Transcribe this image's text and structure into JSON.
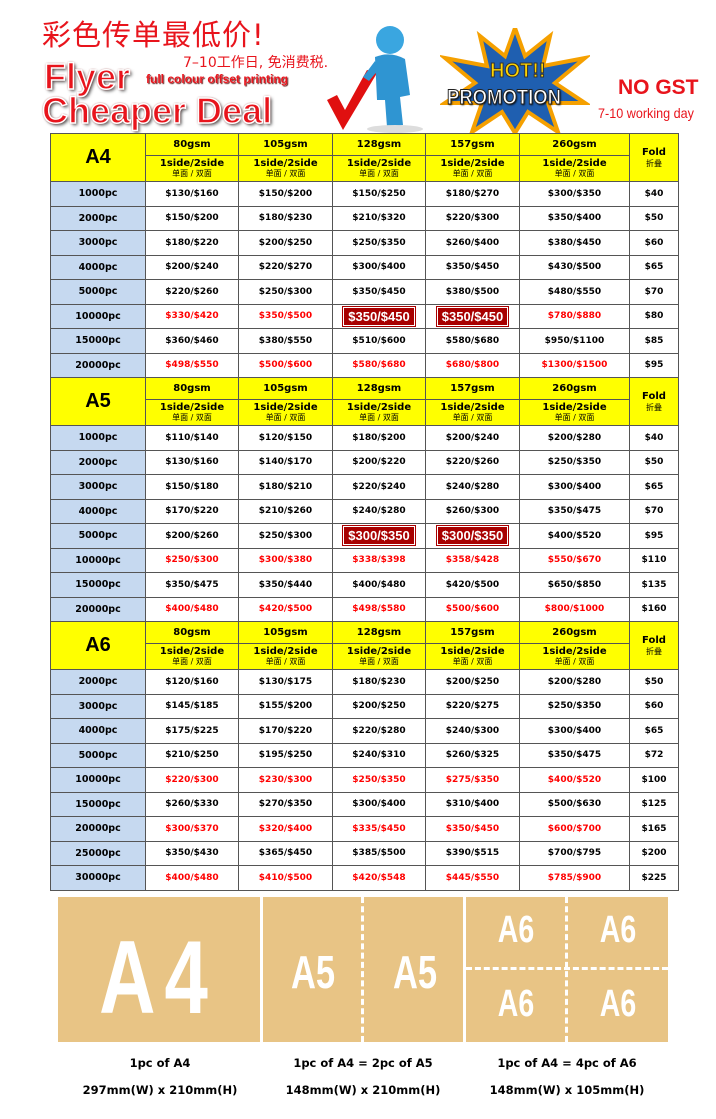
{
  "header": {
    "cn_title": "彩色传单最低价!",
    "cn_subtitle": "7–10工作日, 免消费税.",
    "flyer": "Flyer",
    "full_colour": "full colour offset printing",
    "cheaper_deal": "Cheaper Deal",
    "hot": "HOT!!",
    "promotion": "PROMOTION",
    "no_gst": "NO GST",
    "working_days": "7-10 working day"
  },
  "colors": {
    "accent_red": "#e8141c",
    "header_yellow": "#ffff00",
    "qty_blue": "#c6d9f0",
    "hot_box": "#a80000",
    "paper_tan": "#e8c485"
  },
  "columns": {
    "weights": [
      "80gsm",
      "105gsm",
      "128gsm",
      "157gsm",
      "260gsm"
    ],
    "sides": "1side/2side",
    "sides_cn": "单面 / 双面",
    "fold": "Fold",
    "fold_cn": "折叠"
  },
  "tables": [
    {
      "size": "A4",
      "rows": [
        {
          "qty": "1000pc",
          "prices": [
            "$130/$160",
            "$150/$200",
            "$150/$250",
            "$180/$270",
            "$300/$350"
          ],
          "fold": "$40",
          "style": "normal"
        },
        {
          "qty": "2000pc",
          "prices": [
            "$150/$200",
            "$180/$230",
            "$210/$320",
            "$220/$300",
            "$350/$400"
          ],
          "fold": "$50",
          "style": "normal"
        },
        {
          "qty": "3000pc",
          "prices": [
            "$180/$220",
            "$200/$250",
            "$250/$350",
            "$260/$400",
            "$380/$450"
          ],
          "fold": "$60",
          "style": "normal"
        },
        {
          "qty": "4000pc",
          "prices": [
            "$200/$240",
            "$220/$270",
            "$300/$400",
            "$350/$450",
            "$430/$500"
          ],
          "fold": "$65",
          "style": "normal"
        },
        {
          "qty": "5000pc",
          "prices": [
            "$220/$260",
            "$250/$300",
            "$350/$450",
            "$380/$500",
            "$480/$550"
          ],
          "fold": "$70",
          "style": "normal"
        },
        {
          "qty": "10000pc",
          "prices": [
            "$330/$420",
            "$350/$500",
            "$350/$450",
            "$350/$450",
            "$780/$880"
          ],
          "fold": "$80",
          "style": "red",
          "hot_cols": [
            2,
            3
          ]
        },
        {
          "qty": "15000pc",
          "prices": [
            "$360/$460",
            "$380/$550",
            "$510/$600",
            "$580/$680",
            "$950/$1100"
          ],
          "fold": "$85",
          "style": "normal"
        },
        {
          "qty": "20000pc",
          "prices": [
            "$498/$550",
            "$500/$600",
            "$580/$680",
            "$680/$800",
            "$1300/$1500"
          ],
          "fold": "$95",
          "style": "red"
        }
      ]
    },
    {
      "size": "A5",
      "rows": [
        {
          "qty": "1000pc",
          "prices": [
            "$110/$140",
            "$120/$150",
            "$180/$200",
            "$200/$240",
            "$200/$280"
          ],
          "fold": "$40",
          "style": "normal"
        },
        {
          "qty": "2000pc",
          "prices": [
            "$130/$160",
            "$140/$170",
            "$200/$220",
            "$220/$260",
            "$250/$350"
          ],
          "fold": "$50",
          "style": "normal"
        },
        {
          "qty": "3000pc",
          "prices": [
            "$150/$180",
            "$180/$210",
            "$220/$240",
            "$240/$280",
            "$300/$400"
          ],
          "fold": "$65",
          "style": "normal"
        },
        {
          "qty": "4000pc",
          "prices": [
            "$170/$220",
            "$210/$260",
            "$240/$280",
            "$260/$300",
            "$350/$475"
          ],
          "fold": "$70",
          "style": "normal"
        },
        {
          "qty": "5000pc",
          "prices": [
            "$200/$260",
            "$250/$300",
            "$300/$350",
            "$300/$350",
            "$400/$520"
          ],
          "fold": "$95",
          "style": "normal",
          "hot_cols": [
            2,
            3
          ]
        },
        {
          "qty": "10000pc",
          "prices": [
            "$250/$300",
            "$300/$380",
            "$338/$398",
            "$358/$428",
            "$550/$670"
          ],
          "fold": "$110",
          "style": "red"
        },
        {
          "qty": "15000pc",
          "prices": [
            "$350/$475",
            "$350/$440",
            "$400/$480",
            "$420/$500",
            "$650/$850"
          ],
          "fold": "$135",
          "style": "normal"
        },
        {
          "qty": "20000pc",
          "prices": [
            "$400/$480",
            "$420/$500",
            "$498/$580",
            "$500/$600",
            "$800/$1000"
          ],
          "fold": "$160",
          "style": "red"
        }
      ]
    },
    {
      "size": "A6",
      "rows": [
        {
          "qty": "2000pc",
          "prices": [
            "$120/$160",
            "$130/$175",
            "$180/$230",
            "$200/$250",
            "$200/$280"
          ],
          "fold": "$50",
          "style": "normal"
        },
        {
          "qty": "3000pc",
          "prices": [
            "$145/$185",
            "$155/$200",
            "$200/$250",
            "$220/$275",
            "$250/$350"
          ],
          "fold": "$60",
          "style": "normal"
        },
        {
          "qty": "4000pc",
          "prices": [
            "$175/$225",
            "$170/$220",
            "$220/$280",
            "$240/$300",
            "$300/$400"
          ],
          "fold": "$65",
          "style": "normal"
        },
        {
          "qty": "5000pc",
          "prices": [
            "$210/$250",
            "$195/$250",
            "$240/$310",
            "$260/$325",
            "$350/$475"
          ],
          "fold": "$72",
          "style": "normal"
        },
        {
          "qty": "10000pc",
          "prices": [
            "$220/$300",
            "$230/$300",
            "$250/$350",
            "$275/$350",
            "$400/$520"
          ],
          "fold": "$100",
          "style": "red"
        },
        {
          "qty": "15000pc",
          "prices": [
            "$260/$330",
            "$270/$350",
            "$300/$400",
            "$310/$400",
            "$500/$630"
          ],
          "fold": "$125",
          "style": "normal"
        },
        {
          "qty": "20000pc",
          "prices": [
            "$300/$370",
            "$320/$400",
            "$335/$450",
            "$350/$450",
            "$600/$700"
          ],
          "fold": "$165",
          "style": "red"
        },
        {
          "qty": "25000pc",
          "prices": [
            "$350/$430",
            "$365/$450",
            "$385/$500",
            "$390/$515",
            "$700/$795"
          ],
          "fold": "$200",
          "style": "normal"
        },
        {
          "qty": "30000pc",
          "prices": [
            "$400/$480",
            "$410/$500",
            "$420/$548",
            "$445/$550",
            "$785/$900"
          ],
          "fold": "$225",
          "style": "red"
        }
      ]
    }
  ],
  "sizes_panel": {
    "a4_label": "A4",
    "a5_label": "A5",
    "a6_label": "A6",
    "a4_caption": "1pc of A4",
    "a4_dims": "297mm(W) x 210mm(H)",
    "a5_caption": "1pc of A4 = 2pc of A5",
    "a5_dims": "148mm(W) x 210mm(H)",
    "a6_caption": "1pc of A4 = 4pc of A6",
    "a6_dims": "148mm(W) x 105mm(H)"
  }
}
